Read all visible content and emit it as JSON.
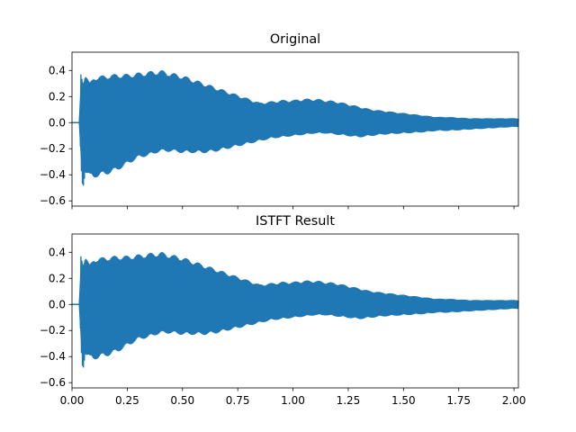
{
  "chart_data": [
    {
      "type": "line",
      "title": "Original",
      "xlabel": "",
      "ylabel": "",
      "xlim": [
        0.0,
        2.02
      ],
      "ylim": [
        -0.64,
        0.54
      ],
      "xticks": [
        0.0,
        0.25,
        0.5,
        0.75,
        1.0,
        1.25,
        1.5,
        1.75,
        2.0
      ],
      "xtick_labels_shown": false,
      "yticks": [
        0.4,
        0.2,
        0.0,
        -0.2,
        -0.4,
        -0.6
      ],
      "ytick_labels": [
        "0.4",
        "0.2",
        "0.0",
        "−0.2",
        "−0.4",
        "−0.6"
      ],
      "grid": false,
      "series": [
        {
          "color": "#1f77b4",
          "style": "dense oscillating waveform; values given as upper and lower envelope",
          "x": [
            0.0,
            0.035,
            0.04,
            0.045,
            0.05,
            0.06,
            0.08,
            0.1,
            0.15,
            0.2,
            0.25,
            0.3,
            0.35,
            0.4,
            0.45,
            0.5,
            0.55,
            0.6,
            0.65,
            0.7,
            0.75,
            0.8,
            0.85,
            0.9,
            0.95,
            1.0,
            1.05,
            1.1,
            1.15,
            1.2,
            1.25,
            1.3,
            1.35,
            1.4,
            1.5,
            1.6,
            1.65,
            1.7,
            1.8,
            1.9,
            2.0,
            2.02
          ],
          "upper": [
            0.0,
            0.0,
            0.38,
            0.35,
            0.32,
            0.38,
            0.3,
            0.35,
            0.36,
            0.37,
            0.37,
            0.38,
            0.39,
            0.4,
            0.38,
            0.36,
            0.33,
            0.3,
            0.27,
            0.24,
            0.21,
            0.18,
            0.15,
            0.16,
            0.17,
            0.17,
            0.18,
            0.18,
            0.17,
            0.16,
            0.14,
            0.12,
            0.1,
            0.09,
            0.07,
            0.05,
            0.04,
            0.04,
            0.03,
            0.03,
            0.03,
            0.03
          ],
          "lower": [
            0.0,
            0.0,
            -0.3,
            -0.45,
            -0.5,
            -0.38,
            -0.42,
            -0.42,
            -0.4,
            -0.37,
            -0.32,
            -0.27,
            -0.25,
            -0.22,
            -0.22,
            -0.23,
            -0.23,
            -0.23,
            -0.22,
            -0.2,
            -0.18,
            -0.16,
            -0.14,
            -0.12,
            -0.11,
            -0.1,
            -0.09,
            -0.08,
            -0.08,
            -0.09,
            -0.1,
            -0.11,
            -0.1,
            -0.09,
            -0.08,
            -0.07,
            -0.06,
            -0.06,
            -0.05,
            -0.04,
            -0.03,
            -0.03
          ]
        }
      ]
    },
    {
      "type": "line",
      "title": "ISTFT Result",
      "xlabel": "",
      "ylabel": "",
      "xlim": [
        0.0,
        2.02
      ],
      "ylim": [
        -0.64,
        0.54
      ],
      "xticks": [
        0.0,
        0.25,
        0.5,
        0.75,
        1.0,
        1.25,
        1.5,
        1.75,
        2.0
      ],
      "xtick_labels": [
        "0.00",
        "0.25",
        "0.50",
        "0.75",
        "1.00",
        "1.25",
        "1.50",
        "1.75",
        "2.00"
      ],
      "yticks": [
        0.4,
        0.2,
        0.0,
        -0.2,
        -0.4,
        -0.6
      ],
      "ytick_labels": [
        "0.4",
        "0.2",
        "0.0",
        "−0.2",
        "−0.4",
        "−0.6"
      ],
      "grid": false,
      "series": [
        {
          "color": "#1f77b4",
          "style": "dense oscillating waveform; values given as upper and lower envelope",
          "x": [
            0.0,
            0.035,
            0.04,
            0.045,
            0.05,
            0.06,
            0.08,
            0.1,
            0.15,
            0.2,
            0.25,
            0.3,
            0.35,
            0.4,
            0.45,
            0.5,
            0.55,
            0.6,
            0.65,
            0.7,
            0.75,
            0.8,
            0.85,
            0.9,
            0.95,
            1.0,
            1.05,
            1.1,
            1.15,
            1.2,
            1.25,
            1.3,
            1.35,
            1.4,
            1.5,
            1.6,
            1.65,
            1.7,
            1.8,
            1.9,
            2.0,
            2.02
          ],
          "upper": [
            0.0,
            0.0,
            0.38,
            0.35,
            0.32,
            0.38,
            0.3,
            0.35,
            0.36,
            0.37,
            0.37,
            0.38,
            0.39,
            0.4,
            0.38,
            0.36,
            0.33,
            0.3,
            0.27,
            0.24,
            0.21,
            0.18,
            0.15,
            0.16,
            0.17,
            0.17,
            0.18,
            0.18,
            0.17,
            0.16,
            0.14,
            0.12,
            0.1,
            0.09,
            0.07,
            0.05,
            0.04,
            0.04,
            0.03,
            0.03,
            0.03,
            0.03
          ],
          "lower": [
            0.0,
            0.0,
            -0.3,
            -0.45,
            -0.5,
            -0.38,
            -0.42,
            -0.42,
            -0.4,
            -0.37,
            -0.32,
            -0.27,
            -0.25,
            -0.22,
            -0.22,
            -0.23,
            -0.23,
            -0.23,
            -0.22,
            -0.2,
            -0.18,
            -0.16,
            -0.14,
            -0.12,
            -0.11,
            -0.1,
            -0.09,
            -0.08,
            -0.08,
            -0.09,
            -0.1,
            -0.11,
            -0.1,
            -0.09,
            -0.08,
            -0.07,
            -0.06,
            -0.06,
            -0.05,
            -0.04,
            -0.03,
            -0.03
          ]
        }
      ]
    }
  ]
}
